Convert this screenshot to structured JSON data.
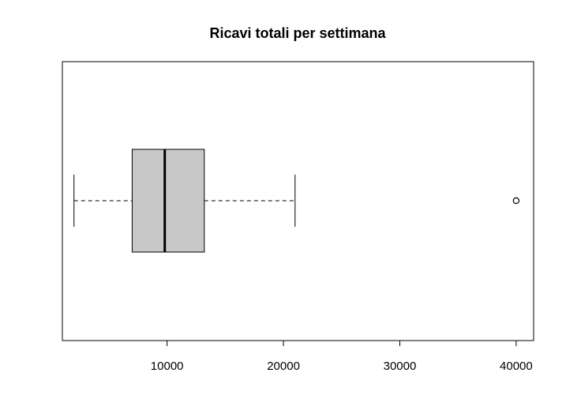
{
  "chart_data": {
    "type": "boxplot",
    "orientation": "horizontal",
    "title": "Ricavi totali per settimana",
    "xlabel": "",
    "ylabel": "",
    "xlim": [
      1000,
      41500
    ],
    "x_ticks": [
      10000,
      20000,
      30000,
      40000
    ],
    "x_tick_labels": [
      "10000",
      "20000",
      "30000",
      "40000"
    ],
    "grid": false,
    "legend": "none",
    "box": {
      "whisker_low": 2000,
      "q1": 7000,
      "median": 9800,
      "q3": 13200,
      "whisker_high": 21000,
      "outliers": [
        40000
      ]
    },
    "colors": {
      "box_fill": "#c8c8c8",
      "stroke": "#000000"
    }
  }
}
